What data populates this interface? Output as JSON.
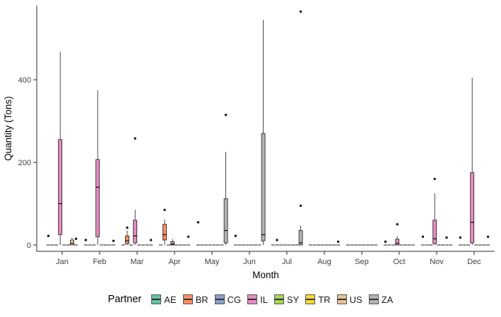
{
  "chart_data": {
    "type": "boxplot",
    "title": "",
    "xlabel": "Month",
    "ylabel": "Quantity (Tons)",
    "legend_title": "Partner",
    "legend_position": "bottom",
    "grid": false,
    "ylim": [
      -15,
      575
    ],
    "yticks": [
      0,
      200,
      400
    ],
    "flat_value": 0,
    "months": [
      "Jan",
      "Feb",
      "Mar",
      "Apr",
      "May",
      "Jun",
      "Jul",
      "Aug",
      "Sep",
      "Oct",
      "Nov",
      "Dec"
    ],
    "partners": [
      {
        "code": "AE",
        "color": "#66C2A5"
      },
      {
        "code": "BR",
        "color": "#FC8D62"
      },
      {
        "code": "CG",
        "color": "#8DA0CB"
      },
      {
        "code": "IL",
        "color": "#E78AC3"
      },
      {
        "code": "SY",
        "color": "#A6D854"
      },
      {
        "code": "TR",
        "color": "#FFD92F"
      },
      {
        "code": "US",
        "color": "#E5C494"
      },
      {
        "code": "ZA",
        "color": "#B3B3B3"
      }
    ],
    "boxes": [
      {
        "month": "Jan",
        "partner": "IL",
        "lo": 0,
        "q1": 25,
        "med": 100,
        "q3": 255,
        "hi": 467
      },
      {
        "month": "Jan",
        "partner": "US",
        "lo": 0,
        "q1": 0,
        "med": 4,
        "q3": 12,
        "hi": 18
      },
      {
        "month": "Feb",
        "partner": "IL",
        "lo": 0,
        "q1": 20,
        "med": 140,
        "q3": 207,
        "hi": 375
      },
      {
        "month": "Mar",
        "partner": "BR",
        "lo": 0,
        "q1": 3,
        "med": 10,
        "q3": 22,
        "hi": 35
      },
      {
        "month": "Mar",
        "partner": "IL",
        "lo": 0,
        "q1": 5,
        "med": 22,
        "q3": 60,
        "hi": 85
      },
      {
        "month": "Apr",
        "partner": "BR",
        "lo": 0,
        "q1": 12,
        "med": 25,
        "q3": 50,
        "hi": 62
      },
      {
        "month": "Apr",
        "partner": "IL",
        "lo": 0,
        "q1": 0,
        "med": 2,
        "q3": 8,
        "hi": 14
      },
      {
        "month": "May",
        "partner": "ZA",
        "lo": 0,
        "q1": 5,
        "med": 35,
        "q3": 112,
        "hi": 225
      },
      {
        "month": "Jun",
        "partner": "ZA",
        "lo": 0,
        "q1": 10,
        "med": 25,
        "q3": 270,
        "hi": 545
      },
      {
        "month": "Jul",
        "partner": "ZA",
        "lo": 0,
        "q1": 0,
        "med": 5,
        "q3": 35,
        "hi": 47
      },
      {
        "month": "Oct",
        "partner": "IL",
        "lo": 0,
        "q1": 0,
        "med": 4,
        "q3": 14,
        "hi": 22
      },
      {
        "month": "Nov",
        "partner": "IL",
        "lo": 0,
        "q1": 3,
        "med": 15,
        "q3": 60,
        "hi": 125
      },
      {
        "month": "Dec",
        "partner": "IL",
        "lo": 0,
        "q1": 5,
        "med": 55,
        "q3": 175,
        "hi": 405
      }
    ],
    "outliers": [
      {
        "month": "Jan",
        "partner": "AE",
        "value": 22
      },
      {
        "month": "Jan",
        "partner": "ZA",
        "value": 15
      },
      {
        "month": "Feb",
        "partner": "AE",
        "value": 12
      },
      {
        "month": "Feb",
        "partner": "ZA",
        "value": 10
      },
      {
        "month": "Mar",
        "partner": "BR",
        "value": 42
      },
      {
        "month": "Mar",
        "partner": "IL",
        "value": 258
      },
      {
        "month": "Mar",
        "partner": "ZA",
        "value": 12
      },
      {
        "month": "Apr",
        "partner": "BR",
        "value": 85
      },
      {
        "month": "Apr",
        "partner": "ZA",
        "value": 20
      },
      {
        "month": "May",
        "partner": "AE",
        "value": 55
      },
      {
        "month": "May",
        "partner": "ZA",
        "value": 315
      },
      {
        "month": "Jun",
        "partner": "AE",
        "value": 22
      },
      {
        "month": "Jul",
        "partner": "BR",
        "value": 12
      },
      {
        "month": "Jul",
        "partner": "ZA",
        "value": 95
      },
      {
        "month": "Jul",
        "partner": "ZA",
        "value": 565
      },
      {
        "month": "Aug",
        "partner": "ZA",
        "value": 8
      },
      {
        "month": "Oct",
        "partner": "AE",
        "value": 8
      },
      {
        "month": "Oct",
        "partner": "IL",
        "value": 50
      },
      {
        "month": "Nov",
        "partner": "AE",
        "value": 20
      },
      {
        "month": "Nov",
        "partner": "IL",
        "value": 160
      },
      {
        "month": "Nov",
        "partner": "US",
        "value": 18
      },
      {
        "month": "Dec",
        "partner": "AE",
        "value": 18
      },
      {
        "month": "Dec",
        "partner": "ZA",
        "value": 20
      }
    ]
  }
}
